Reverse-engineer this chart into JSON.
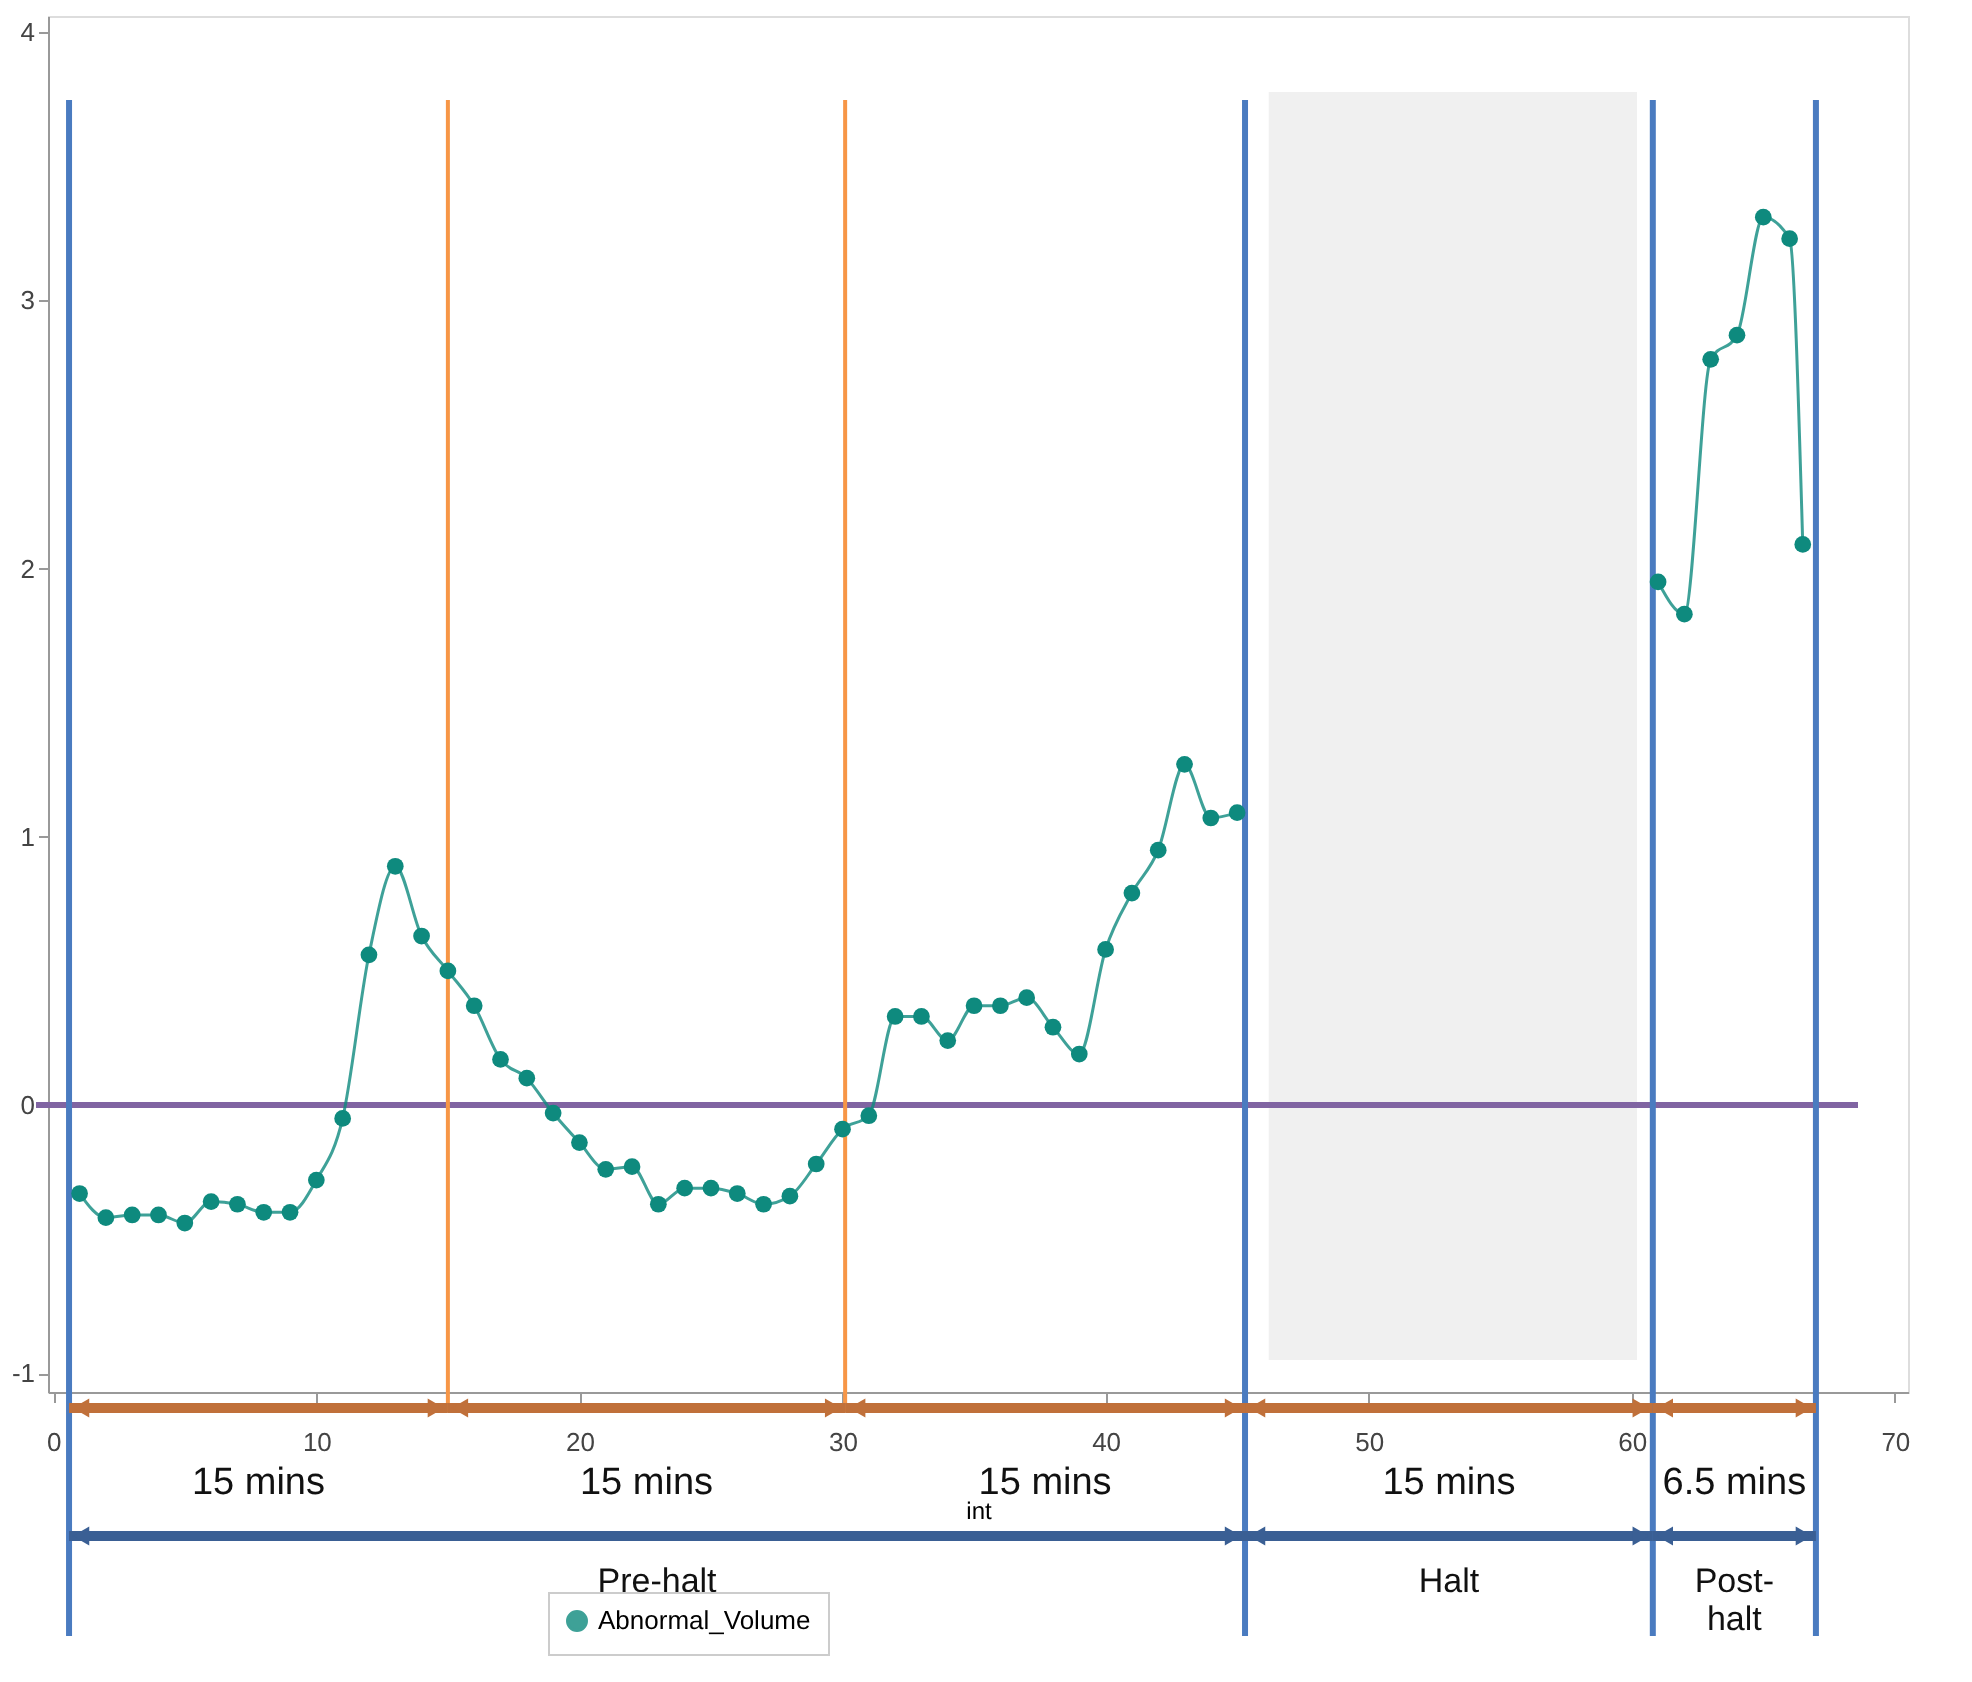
{
  "chart_data": {
    "type": "line",
    "xlabel": "int",
    "xlim": [
      -0.2,
      70.5
    ],
    "ylim": [
      -1.07,
      4.06
    ],
    "xticks": [
      0,
      10,
      20,
      30,
      40,
      50,
      60,
      70
    ],
    "yticks": [
      -1,
      0,
      1,
      2,
      3,
      4
    ],
    "grid": false,
    "legend": "bottom",
    "marker": "circle",
    "line_style": "solid",
    "series": [
      {
        "name": "Abnormal_Volume",
        "color": "#0e8a7e",
        "x": [
          1,
          2,
          3,
          4,
          5,
          6,
          7,
          8,
          9,
          10,
          11,
          12,
          13,
          14,
          15,
          16,
          17,
          18,
          19,
          20,
          21,
          22,
          23,
          24,
          25,
          26,
          27,
          28,
          29,
          30,
          31,
          32,
          33,
          34,
          35,
          36,
          37,
          38,
          39,
          40,
          41,
          42,
          43,
          44,
          45,
          53,
          61,
          62,
          63,
          64,
          65,
          66,
          66.5
        ],
        "values": [
          -0.33,
          -0.42,
          -0.41,
          -0.41,
          -0.44,
          -0.36,
          -0.37,
          -0.4,
          -0.4,
          -0.28,
          -0.05,
          0.56,
          0.89,
          0.63,
          0.5,
          0.37,
          0.17,
          0.1,
          -0.03,
          -0.14,
          -0.24,
          -0.23,
          -0.37,
          -0.31,
          -0.31,
          -0.33,
          -0.37,
          -0.34,
          -0.22,
          -0.09,
          -0.04,
          0.33,
          0.33,
          0.24,
          0.37,
          0.37,
          0.4,
          0.29,
          0.19,
          0.58,
          0.79,
          0.95,
          1.27,
          1.07,
          1.09,
          null,
          1.95,
          1.83,
          2.78,
          2.87,
          3.31,
          3.23,
          2.09
        ]
      }
    ],
    "ref_lines": [
      {
        "axis": "y",
        "value": 0,
        "color": "#8064a2"
      },
      {
        "axis": "x",
        "value": 0.6,
        "color": "#4a7bc0"
      },
      {
        "axis": "x",
        "value": 15,
        "color": "#f79646"
      },
      {
        "axis": "x",
        "value": 30.1,
        "color": "#f79646"
      },
      {
        "axis": "x",
        "value": 45.3,
        "color": "#4a7bc0"
      },
      {
        "axis": "x",
        "value": 60.8,
        "color": "#4a7bc0"
      },
      {
        "axis": "x",
        "value": 67,
        "color": "#4a7bc0"
      }
    ],
    "bands": [
      {
        "axis": "x",
        "from": 46.2,
        "to": 60.2,
        "color": "#f0f0f0"
      }
    ],
    "annotations": [
      "15 mins",
      "15 mins",
      "15 mins",
      "15 mins",
      "6.5 mins",
      "Pre-halt",
      "Halt",
      "Post-\nhalt"
    ]
  }
}
